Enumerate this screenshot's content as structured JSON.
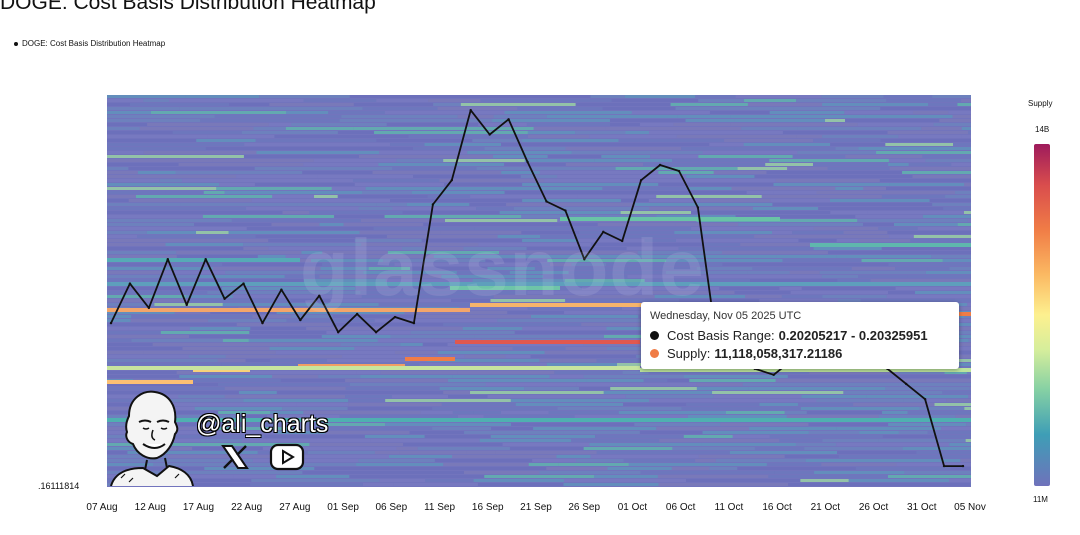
{
  "title": "DOGE: Cost Basis Distribution Heatmap",
  "legend_label": "DOGE: Cost Basis Distribution Heatmap",
  "watermark": "glassnode",
  "y_axis_min_label": ".16111814",
  "color_scale": {
    "title": "Supply",
    "max_label": "14B",
    "min_label": "11M"
  },
  "tooltip": {
    "date": "Wednesday, Nov 05 2025 UTC",
    "range_label": "Cost Basis Range:",
    "range_value": "0.20205217 - 0.20325951",
    "supply_label": "Supply:",
    "supply_value": "11,118,058,317.21186",
    "range_dot_color": "#111111",
    "supply_dot_color": "#f07c46"
  },
  "branding": {
    "handle": "@ali_charts",
    "icons": [
      "x-logo-icon",
      "youtube-icon"
    ]
  },
  "colors": {
    "heatmap_base": "#7274bd",
    "price_line": "#111111"
  },
  "chart_data": {
    "type": "heatmap",
    "title": "DOGE: Cost Basis Distribution Heatmap",
    "series": [
      {
        "name": "DOGE: Cost Basis Distribution Heatmap",
        "x": [
          "07 Aug",
          "09 Aug",
          "11 Aug",
          "13 Aug",
          "15 Aug",
          "17 Aug",
          "19 Aug",
          "21 Aug",
          "23 Aug",
          "25 Aug",
          "27 Aug",
          "29 Aug",
          "31 Aug",
          "02 Sep",
          "04 Sep",
          "06 Sep",
          "08 Sep",
          "10 Sep",
          "12 Sep",
          "14 Sep",
          "16 Sep",
          "18 Sep",
          "20 Sep",
          "22 Sep",
          "24 Sep",
          "26 Sep",
          "28 Sep",
          "30 Sep",
          "02 Oct",
          "04 Oct",
          "06 Oct",
          "08 Oct",
          "10 Oct",
          "12 Oct",
          "14 Oct",
          "16 Oct",
          "18 Oct",
          "20 Oct",
          "22 Oct",
          "24 Oct",
          "26 Oct",
          "28 Oct",
          "30 Oct",
          "01 Nov",
          "03 Nov",
          "05 Nov"
        ],
        "y": [
          0.215,
          0.228,
          0.22,
          0.236,
          0.221,
          0.236,
          0.223,
          0.228,
          0.215,
          0.226,
          0.216,
          0.224,
          0.212,
          0.218,
          0.212,
          0.217,
          0.215,
          0.254,
          0.262,
          0.285,
          0.277,
          0.282,
          0.268,
          0.255,
          0.252,
          0.236,
          0.245,
          0.242,
          0.262,
          0.267,
          0.265,
          0.253,
          0.208,
          0.215,
          0.2,
          0.198,
          0.203,
          0.21,
          0.203,
          0.21,
          0.212,
          0.2,
          0.195,
          0.19,
          0.168,
          0.168
        ]
      }
    ],
    "y_axis_min": 0.16111814,
    "x_tick_labels": [
      "07 Aug",
      "12 Aug",
      "17 Aug",
      "22 Aug",
      "27 Aug",
      "01 Sep",
      "06 Sep",
      "11 Sep",
      "16 Sep",
      "21 Sep",
      "26 Sep",
      "01 Oct",
      "06 Oct",
      "11 Oct",
      "16 Oct",
      "21 Oct",
      "26 Oct",
      "31 Oct",
      "05 Nov"
    ],
    "color_scale": {
      "label": "Supply",
      "min": "11M",
      "max": "14B"
    },
    "legend_position": "top-left",
    "grid": false
  }
}
